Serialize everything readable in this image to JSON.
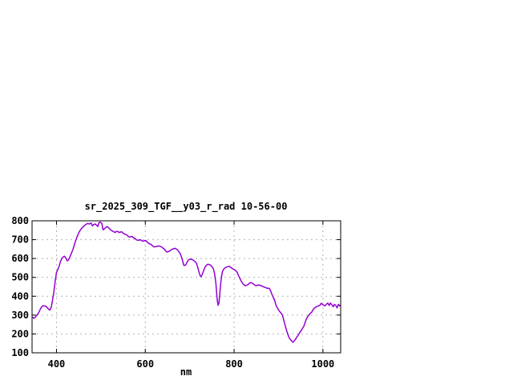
{
  "chart_data": {
    "type": "line",
    "title": "sr_2025_309_TGF__y03_r_rad 10-56-00",
    "xlabel": "nm",
    "ylabel": "",
    "xlim": [
      345,
      1040
    ],
    "ylim": [
      100,
      800
    ],
    "x_ticks": [
      400,
      600,
      800,
      1000
    ],
    "y_ticks": [
      100,
      200,
      300,
      400,
      500,
      600,
      700,
      800
    ],
    "grid": true,
    "legend_position": "none",
    "colors": {
      "line": "#9400d3",
      "grid": "#b3b3b3",
      "border": "#000000",
      "background": "#ffffff"
    },
    "series": [
      {
        "name": "sr_2025_309_TGF__y03_r_rad",
        "points": [
          [
            346,
            290
          ],
          [
            349,
            283
          ],
          [
            352,
            288
          ],
          [
            355,
            297
          ],
          [
            358,
            305
          ],
          [
            361,
            318
          ],
          [
            364,
            333
          ],
          [
            367,
            345
          ],
          [
            370,
            350
          ],
          [
            373,
            348
          ],
          [
            376,
            347
          ],
          [
            379,
            340
          ],
          [
            382,
            332
          ],
          [
            385,
            326
          ],
          [
            388,
            340
          ],
          [
            391,
            378
          ],
          [
            394,
            420
          ],
          [
            397,
            478
          ],
          [
            400,
            527
          ],
          [
            403,
            541
          ],
          [
            406,
            560
          ],
          [
            409,
            585
          ],
          [
            412,
            600
          ],
          [
            415,
            608
          ],
          [
            418,
            612
          ],
          [
            421,
            603
          ],
          [
            424,
            588
          ],
          [
            427,
            592
          ],
          [
            430,
            608
          ],
          [
            434,
            630
          ],
          [
            438,
            655
          ],
          [
            442,
            686
          ],
          [
            446,
            712
          ],
          [
            450,
            736
          ],
          [
            454,
            752
          ],
          [
            458,
            764
          ],
          [
            462,
            773
          ],
          [
            466,
            780
          ],
          [
            470,
            786
          ],
          [
            474,
            783
          ],
          [
            478,
            788
          ],
          [
            481,
            773
          ],
          [
            484,
            780
          ],
          [
            487,
            783
          ],
          [
            490,
            778
          ],
          [
            493,
            770
          ],
          [
            496,
            790
          ],
          [
            499,
            793
          ],
          [
            502,
            786
          ],
          [
            505,
            752
          ],
          [
            508,
            758
          ],
          [
            511,
            765
          ],
          [
            514,
            770
          ],
          [
            517,
            763
          ],
          [
            520,
            757
          ],
          [
            523,
            750
          ],
          [
            526,
            746
          ],
          [
            529,
            742
          ],
          [
            532,
            738
          ],
          [
            535,
            744
          ],
          [
            538,
            743
          ],
          [
            541,
            738
          ],
          [
            544,
            740
          ],
          [
            547,
            742
          ],
          [
            550,
            734
          ],
          [
            553,
            731
          ],
          [
            556,
            727
          ],
          [
            559,
            724
          ],
          [
            562,
            716
          ],
          [
            565,
            714
          ],
          [
            568,
            717
          ],
          [
            571,
            716
          ],
          [
            574,
            709
          ],
          [
            577,
            706
          ],
          [
            580,
            699
          ],
          [
            583,
            697
          ],
          [
            586,
            697
          ],
          [
            589,
            700
          ],
          [
            592,
            695
          ],
          [
            595,
            692
          ],
          [
            598,
            694
          ],
          [
            601,
            696
          ],
          [
            604,
            688
          ],
          [
            607,
            682
          ],
          [
            610,
            678
          ],
          [
            613,
            675
          ],
          [
            616,
            668
          ],
          [
            619,
            662
          ],
          [
            622,
            662
          ],
          [
            625,
            664
          ],
          [
            628,
            666
          ],
          [
            631,
            667
          ],
          [
            634,
            664
          ],
          [
            637,
            661
          ],
          [
            640,
            655
          ],
          [
            643,
            650
          ],
          [
            646,
            640
          ],
          [
            649,
            634
          ],
          [
            652,
            637
          ],
          [
            655,
            640
          ],
          [
            658,
            645
          ],
          [
            661,
            650
          ],
          [
            664,
            652
          ],
          [
            667,
            654
          ],
          [
            670,
            650
          ],
          [
            673,
            645
          ],
          [
            676,
            635
          ],
          [
            679,
            625
          ],
          [
            682,
            605
          ],
          [
            685,
            580
          ],
          [
            687,
            563
          ],
          [
            689,
            564
          ],
          [
            691,
            566
          ],
          [
            694,
            580
          ],
          [
            697,
            592
          ],
          [
            700,
            596
          ],
          [
            703,
            597
          ],
          [
            706,
            594
          ],
          [
            709,
            590
          ],
          [
            712,
            583
          ],
          [
            715,
            576
          ],
          [
            718,
            555
          ],
          [
            721,
            528
          ],
          [
            724,
            507
          ],
          [
            726,
            504
          ],
          [
            729,
            520
          ],
          [
            732,
            540
          ],
          [
            735,
            556
          ],
          [
            738,
            565
          ],
          [
            741,
            570
          ],
          [
            744,
            568
          ],
          [
            747,
            565
          ],
          [
            750,
            557
          ],
          [
            753,
            548
          ],
          [
            756,
            520
          ],
          [
            759,
            470
          ],
          [
            762,
            380
          ],
          [
            764,
            352
          ],
          [
            766,
            365
          ],
          [
            768,
            420
          ],
          [
            770,
            470
          ],
          [
            772,
            508
          ],
          [
            774,
            532
          ],
          [
            777,
            545
          ],
          [
            780,
            551
          ],
          [
            783,
            555
          ],
          [
            786,
            557
          ],
          [
            789,
            559
          ],
          [
            792,
            554
          ],
          [
            795,
            548
          ],
          [
            798,
            544
          ],
          [
            801,
            541
          ],
          [
            804,
            535
          ],
          [
            807,
            527
          ],
          [
            810,
            510
          ],
          [
            813,
            495
          ],
          [
            816,
            480
          ],
          [
            819,
            469
          ],
          [
            822,
            461
          ],
          [
            825,
            456
          ],
          [
            828,
            458
          ],
          [
            831,
            461
          ],
          [
            834,
            468
          ],
          [
            837,
            473
          ],
          [
            840,
            470
          ],
          [
            843,
            466
          ],
          [
            846,
            460
          ],
          [
            849,
            456
          ],
          [
            852,
            458
          ],
          [
            855,
            460
          ],
          [
            858,
            458
          ],
          [
            861,
            456
          ],
          [
            864,
            452
          ],
          [
            867,
            449
          ],
          [
            870,
            447
          ],
          [
            873,
            443
          ],
          [
            876,
            442
          ],
          [
            879,
            442
          ],
          [
            882,
            430
          ],
          [
            885,
            412
          ],
          [
            888,
            395
          ],
          [
            891,
            380
          ],
          [
            894,
            355
          ],
          [
            897,
            340
          ],
          [
            900,
            328
          ],
          [
            903,
            318
          ],
          [
            906,
            310
          ],
          [
            909,
            300
          ],
          [
            912,
            272
          ],
          [
            915,
            245
          ],
          [
            918,
            220
          ],
          [
            921,
            198
          ],
          [
            924,
            180
          ],
          [
            927,
            170
          ],
          [
            930,
            162
          ],
          [
            933,
            156
          ],
          [
            936,
            165
          ],
          [
            939,
            175
          ],
          [
            942,
            186
          ],
          [
            945,
            196
          ],
          [
            948,
            208
          ],
          [
            951,
            218
          ],
          [
            954,
            230
          ],
          [
            957,
            240
          ],
          [
            960,
            262
          ],
          [
            963,
            280
          ],
          [
            966,
            293
          ],
          [
            969,
            302
          ],
          [
            972,
            310
          ],
          [
            975,
            316
          ],
          [
            978,
            330
          ],
          [
            981,
            337
          ],
          [
            984,
            342
          ],
          [
            987,
            347
          ],
          [
            990,
            349
          ],
          [
            993,
            351
          ],
          [
            996,
            362
          ],
          [
            999,
            357
          ],
          [
            1002,
            352
          ],
          [
            1005,
            350
          ],
          [
            1008,
            358
          ],
          [
            1011,
            364
          ],
          [
            1014,
            351
          ],
          [
            1017,
            364
          ],
          [
            1020,
            355
          ],
          [
            1023,
            344
          ],
          [
            1026,
            357
          ],
          [
            1029,
            351
          ],
          [
            1032,
            338
          ],
          [
            1035,
            357
          ],
          [
            1038,
            348
          ],
          [
            1040,
            352
          ]
        ]
      }
    ]
  }
}
